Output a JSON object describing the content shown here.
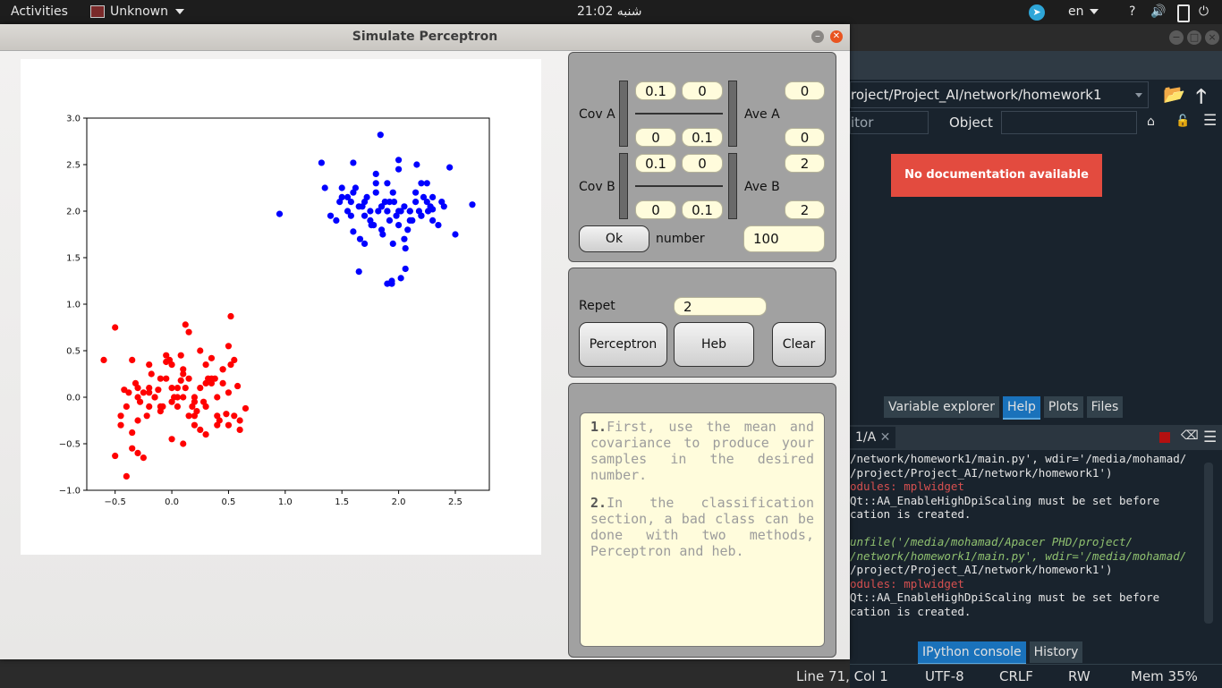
{
  "topbar": {
    "activities": "Activities",
    "app_name": "Unknown",
    "clock": "21:02 شنبه",
    "language": "en",
    "help": "?",
    "volume": "🔊",
    "power": "⏻"
  },
  "spyder": {
    "path": "roject/Project_AI/network/homework1",
    "source_partial": "itor",
    "object_label": "Object",
    "object_value": "",
    "no_doc": "No documentation available",
    "help_tabs": [
      "Variable explorer",
      "Help",
      "Plots",
      "Files"
    ],
    "console_tab": "1/A",
    "console_lines": [
      {
        "text": "/network/homework1/main.py', wdir='/media/mohamad/",
        "cls": ""
      },
      {
        "text": "/project/Project_AI/network/homework1')",
        "cls": ""
      },
      {
        "text": "odules: mplwidget",
        "cls": "red"
      },
      {
        "text": "Qt::AA_EnableHighDpiScaling must be set before",
        "cls": ""
      },
      {
        "text": "cation is created.",
        "cls": ""
      },
      {
        "text": "",
        "cls": ""
      },
      {
        "text": "unfile('/media/mohamad/Apacer PHD/project/",
        "cls": "grn"
      },
      {
        "text": "/network/homework1/main.py', wdir='/media/mohamad/",
        "cls": "grn"
      },
      {
        "text": "/project/Project_AI/network/homework1')",
        "cls": ""
      },
      {
        "text": "odules: mplwidget",
        "cls": "red"
      },
      {
        "text": "Qt::AA_EnableHighDpiScaling must be set before",
        "cls": ""
      },
      {
        "text": "cation is created.",
        "cls": ""
      }
    ],
    "bottom_tabs": [
      "IPython console",
      "History"
    ],
    "status": {
      "line_col": "Line 71, Col 1",
      "encoding": "UTF-8",
      "eol": "CRLF",
      "rw": "RW",
      "mem": "Mem 35%"
    }
  },
  "window": {
    "title": "Simulate Perceptron"
  },
  "form": {
    "cov_a_label": "Cov A",
    "cov_a": [
      "0.1",
      "0",
      "0",
      "0.1"
    ],
    "ave_a_label": "Ave A",
    "ave_a": [
      "0",
      "0"
    ],
    "cov_b_label": "Cov B",
    "cov_b": [
      "0.1",
      "0",
      "0",
      "0.1"
    ],
    "ave_b_label": "Ave B",
    "ave_b": [
      "2",
      "2"
    ],
    "ok_label": "Ok",
    "number_label": "number",
    "number_value": "100",
    "repet_label": "Repet",
    "repet_value": "2",
    "perceptron_label": "Perceptron",
    "heb_label": "Heb",
    "clear_label": "Clear"
  },
  "notes": {
    "note1_num": "1.",
    "note1_text": "First, use the mean and covariance to produce your samples in the desired number.",
    "note2_num": "2.",
    "note2_text": "In the classification section, a bad class can be done with two methods, Perceptron and heb."
  },
  "chart_data": {
    "type": "scatter",
    "xlim": [
      -0.75,
      2.8
    ],
    "ylim": [
      -1.0,
      3.0
    ],
    "xticks": [
      "−0.5",
      "0.0",
      "0.5",
      "1.0",
      "1.5",
      "2.0",
      "2.5"
    ],
    "xtick_values": [
      -0.5,
      0.0,
      0.5,
      1.0,
      1.5,
      2.0,
      2.5
    ],
    "yticks": [
      "−1.0",
      "−0.5",
      "0.0",
      "0.5",
      "1.0",
      "1.5",
      "2.0",
      "2.5",
      "3.0"
    ],
    "ytick_values": [
      -1.0,
      -0.5,
      0.0,
      0.5,
      1.0,
      1.5,
      2.0,
      2.5,
      3.0
    ],
    "series": [
      {
        "color": "#ff0000",
        "x": [
          -0.5,
          -0.6,
          -0.45,
          -0.4,
          -0.3,
          -0.25,
          -0.2,
          -0.15,
          -0.1,
          -0.05,
          0.0,
          0.05,
          0.1,
          0.15,
          0.2,
          0.25,
          0.3,
          0.35,
          0.4,
          0.45,
          0.5,
          0.55,
          0.6,
          -0.35,
          -0.3,
          -0.2,
          -0.1,
          0.0,
          0.1,
          0.2,
          0.3,
          0.4,
          0.5,
          -0.4,
          -0.3,
          -0.2,
          -0.1,
          0.0,
          0.1,
          0.2,
          0.3,
          0.4,
          0.5,
          0.6,
          -0.45,
          -0.35,
          -0.25,
          -0.15,
          -0.05,
          0.05,
          0.15,
          0.25,
          0.35,
          0.45,
          0.55,
          -0.38,
          -0.28,
          -0.18,
          -0.08,
          0.02,
          0.12,
          0.22,
          0.32,
          0.42,
          0.52,
          0.12,
          0.15,
          0.52,
          0.08,
          -0.05,
          0.25,
          0.35,
          -0.3,
          0.0,
          0.2,
          0.1,
          -0.2,
          0.3,
          0.45,
          0.65,
          -0.35,
          -0.5,
          -0.42,
          0.05,
          0.18,
          0.28,
          0.38,
          0.48,
          0.58,
          -0.12,
          -0.22,
          -0.32,
          -0.02,
          0.08
        ],
        "y": [
          0.75,
          0.4,
          -0.2,
          -0.85,
          -0.6,
          -0.65,
          0.35,
          0.0,
          -0.1,
          0.2,
          -0.45,
          0.1,
          0.25,
          -0.2,
          0.0,
          0.1,
          -0.1,
          0.2,
          -0.2,
          0.15,
          -0.3,
          0.4,
          -0.35,
          0.4,
          0.1,
          0.05,
          -0.15,
          0.35,
          0.0,
          -0.05,
          0.15,
          -0.3,
          0.55,
          -0.1,
          -0.25,
          0.1,
          0.2,
          -0.05,
          0.3,
          -0.2,
          -0.4,
          0.0,
          0.05,
          -0.25,
          -0.3,
          -0.55,
          0.05,
          0.0,
          0.45,
          -0.1,
          0.2,
          -0.35,
          0.15,
          0.3,
          -0.2,
          0.05,
          -0.05,
          0.25,
          -0.1,
          0.0,
          0.1,
          -0.15,
          0.2,
          -0.25,
          0.35,
          0.78,
          0.7,
          0.87,
          0.45,
          0.38,
          0.5,
          0.42,
          0.0,
          0.1,
          -0.3,
          -0.5,
          -0.1,
          0.35,
          0.3,
          -0.12,
          -0.38,
          -0.63,
          0.08,
          0.0,
          -0.1,
          -0.05,
          0.2,
          -0.18,
          0.12,
          0.08,
          -0.2,
          0.15,
          0.4,
          0.18
        ],
        "name": ""
      },
      {
        "color": "#0000ff",
        "x": [
          0.95,
          1.32,
          1.35,
          1.5,
          1.55,
          1.6,
          1.65,
          1.7,
          1.75,
          1.8,
          1.85,
          1.9,
          1.95,
          2.0,
          2.05,
          2.1,
          2.15,
          2.2,
          2.25,
          2.3,
          2.35,
          2.4,
          2.5,
          2.65,
          1.4,
          1.45,
          1.5,
          1.55,
          1.6,
          1.65,
          1.7,
          1.75,
          1.8,
          1.85,
          1.9,
          1.95,
          2.0,
          2.05,
          2.1,
          2.15,
          2.2,
          2.25,
          2.3,
          1.58,
          1.68,
          1.78,
          1.88,
          1.98,
          2.08,
          2.18,
          2.28,
          2.38,
          1.62,
          1.72,
          1.82,
          1.92,
          2.02,
          2.12,
          2.22,
          1.66,
          1.76,
          1.86,
          1.96,
          2.06,
          2.16,
          2.26,
          1.84,
          1.94,
          1.9,
          1.94,
          2.02,
          2.06,
          2.45,
          1.48,
          1.58,
          1.88,
          1.92,
          2.0,
          2.1,
          1.7,
          1.8,
          2.0,
          2.2,
          1.6,
          1.9,
          2.3,
          1.85
        ],
        "y": [
          1.97,
          2.52,
          2.25,
          2.15,
          2.0,
          1.78,
          1.35,
          2.1,
          1.9,
          2.3,
          2.05,
          2.0,
          2.2,
          1.85,
          2.05,
          1.9,
          2.1,
          1.95,
          2.3,
          2.15,
          1.85,
          2.05,
          1.75,
          2.07,
          1.95,
          1.9,
          2.25,
          2.15,
          2.2,
          2.05,
          1.95,
          2.0,
          2.2,
          1.8,
          2.0,
          1.65,
          2.55,
          1.7,
          2.0,
          2.2,
          1.95,
          2.1,
          1.9,
          2.1,
          2.05,
          1.85,
          2.1,
          1.95,
          1.8,
          2.0,
          2.05,
          2.1,
          2.25,
          2.15,
          2.0,
          2.1,
          2.0,
          1.9,
          2.15,
          1.7,
          1.85,
          1.75,
          2.1,
          1.6,
          2.5,
          2.0,
          2.82,
          1.25,
          1.22,
          1.22,
          1.28,
          1.38,
          2.47,
          2.1,
          1.95,
          2.1,
          1.9,
          2.0,
          2.0,
          1.65,
          2.4,
          2.45,
          2.3,
          2.52,
          2.3,
          2.02,
          2.05
        ],
        "name": ""
      }
    ]
  }
}
